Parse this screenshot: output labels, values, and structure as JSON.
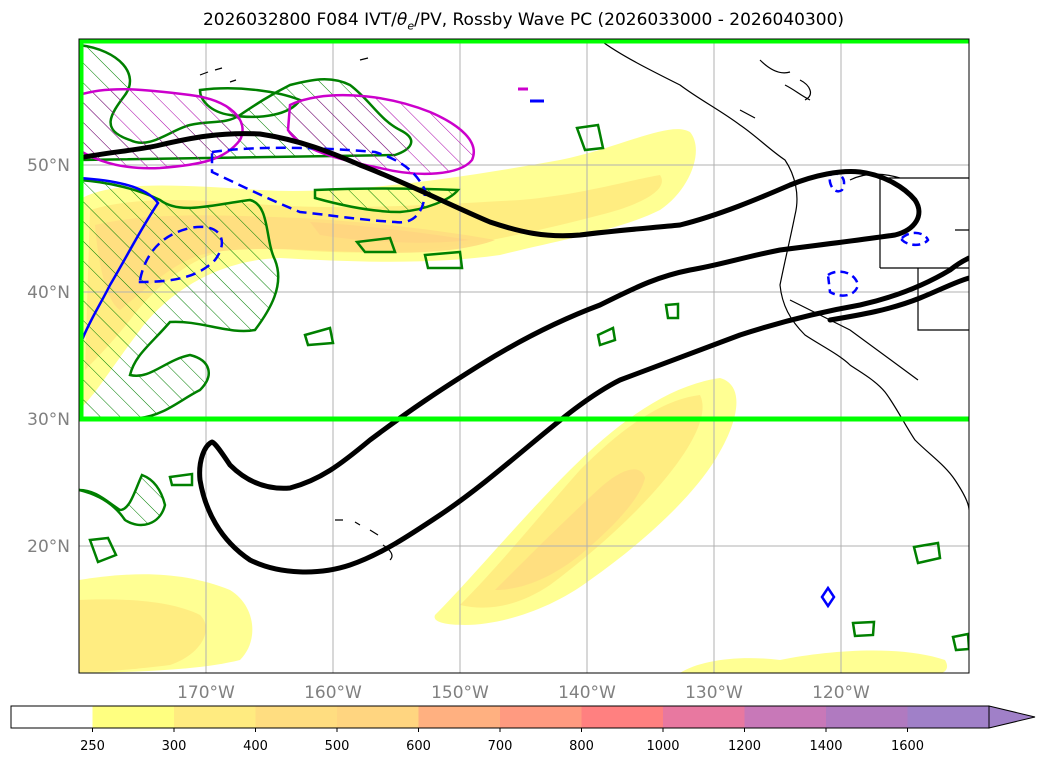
{
  "title": {
    "prefix": "2026032800 F084 IVT/",
    "theta": "θ",
    "theta_sub": "e",
    "suffix": "/PV, Rossby Wave PC (2026033000 - 2026040300)"
  },
  "axes": {
    "lat_labels": [
      "50°N",
      "40°N",
      "30°N",
      "20°N"
    ],
    "lon_labels": [
      "170°W",
      "160°W",
      "150°W",
      "140°W",
      "130°W",
      "120°W"
    ]
  },
  "colorbar": {
    "levels": [
      "250",
      "300",
      "400",
      "500",
      "600",
      "700",
      "800",
      "1000",
      "1200",
      "1400",
      "1600"
    ],
    "colors": [
      "#ffffff",
      "#ffff80",
      "#ffeb80",
      "#ffdd80",
      "#ffd580",
      "#ffb080",
      "#ff9a80",
      "#ff8080",
      "#e878a0",
      "#c878b8",
      "#b07ac0",
      "#a080c8"
    ]
  },
  "colors": {
    "box": "#00ff00",
    "rossby_contour": "#000000",
    "thetae_contour": "#0000ff",
    "pv_contour": "#008000",
    "magenta_contour": "#cc00cc"
  }
}
